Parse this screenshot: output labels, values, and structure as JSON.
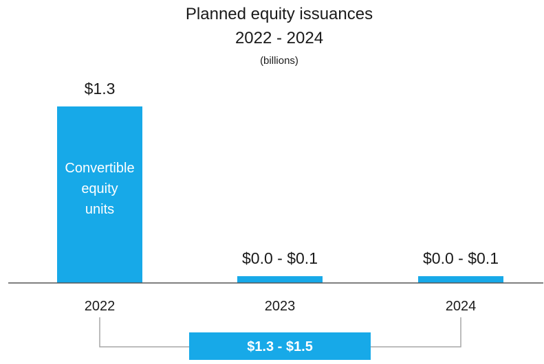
{
  "chart_data": {
    "type": "bar",
    "title": "Planned equity issuances",
    "subtitle": "2022 - 2024",
    "unit_note": "(billions)",
    "categories": [
      "2022",
      "2023",
      "2024"
    ],
    "values": [
      1.3,
      0.05,
      0.05
    ],
    "ranges": [
      null,
      [
        0.0,
        0.1
      ],
      [
        0.0,
        0.1
      ]
    ],
    "data_labels": [
      "$1.3",
      "$0.0 - $0.1",
      "$0.0 - $0.1"
    ],
    "bar_inner_label": "Convertible\nequity\nunits",
    "bar_inner_label_index": 0,
    "total_label": "$1.3 - $1.5",
    "ylim": [
      0,
      1.3
    ],
    "grid": false,
    "legend": "none"
  },
  "colors": {
    "bar": "#17A9E8",
    "text": "#1a1a1a",
    "inner_text": "#ffffff",
    "axis": "#555555",
    "bracket": "#a6a6a6",
    "total_box": "#17A9E8",
    "total_text": "#ffffff"
  }
}
